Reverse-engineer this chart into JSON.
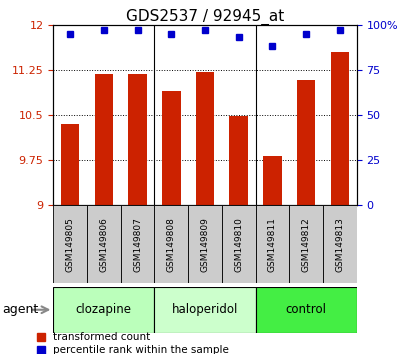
{
  "title": "GDS2537 / 92945_at",
  "samples": [
    "GSM149805",
    "GSM149806",
    "GSM149807",
    "GSM149808",
    "GSM149809",
    "GSM149810",
    "GSM149811",
    "GSM149812",
    "GSM149813"
  ],
  "bar_values": [
    10.35,
    11.18,
    11.18,
    10.9,
    11.22,
    10.48,
    9.82,
    11.08,
    11.55
  ],
  "percentile_values": [
    95,
    97,
    97,
    95,
    97,
    93,
    88,
    95,
    97
  ],
  "ymin": 9.0,
  "ymax": 12.0,
  "yticks": [
    9.0,
    9.75,
    10.5,
    11.25,
    12.0
  ],
  "ytick_labels": [
    "9",
    "9.75",
    "10.5",
    "11.25",
    "12"
  ],
  "right_yticks": [
    0,
    25,
    50,
    75,
    100
  ],
  "right_ytick_labels": [
    "0",
    "25",
    "50",
    "75",
    "100%"
  ],
  "bar_color": "#cc2200",
  "dot_color": "#0000cc",
  "groups": [
    {
      "label": "clozapine",
      "start": 0,
      "end": 3,
      "color": "#bbffbb"
    },
    {
      "label": "haloperidol",
      "start": 3,
      "end": 6,
      "color": "#ccffcc"
    },
    {
      "label": "control",
      "start": 6,
      "end": 9,
      "color": "#44ee44"
    }
  ],
  "sample_row_color": "#cccccc",
  "agent_label": "agent",
  "legend_bar_label": "transformed count",
  "legend_dot_label": "percentile rank within the sample",
  "title_fontsize": 11,
  "tick_fontsize": 8,
  "axis_label_color_left": "#cc2200",
  "axis_label_color_right": "#0000cc",
  "bg_color": "#ffffff"
}
